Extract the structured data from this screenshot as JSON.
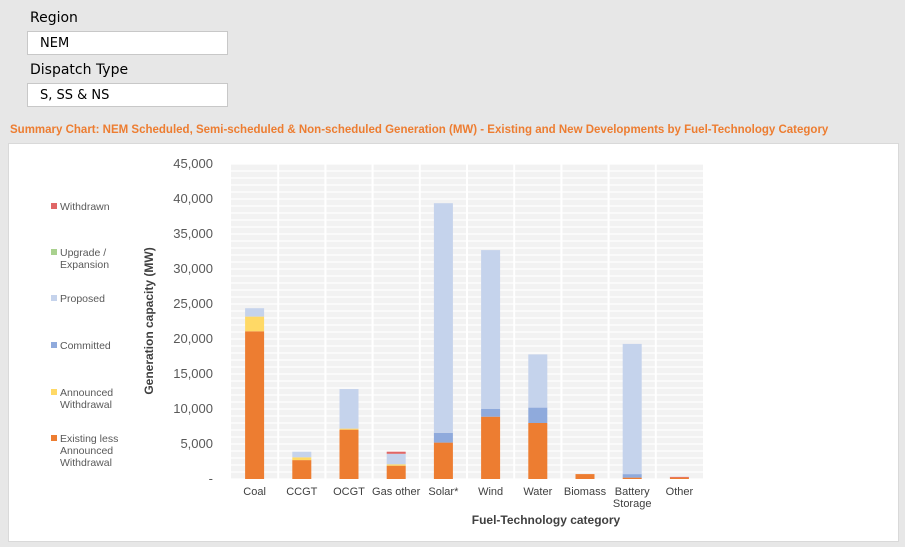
{
  "filters": {
    "region_label": "Region",
    "region_value": "NEM",
    "dispatch_label": "Dispatch Type",
    "dispatch_value": "S, SS & NS"
  },
  "chart_title": "Summary Chart:  NEM Scheduled, Semi-scheduled & Non-scheduled Generation (MW) - Existing and New Developments by Fuel-Technology Category",
  "chart_data": {
    "type": "bar",
    "stacked": true,
    "title": "Summary Chart:  NEM Scheduled, Semi-scheduled & Non-scheduled Generation (MW) - Existing and New Developments by Fuel-Technology Category",
    "xlabel": "Fuel-Technology category",
    "ylabel": "Generation capacity (MW)",
    "ylim": [
      0,
      45000
    ],
    "yticks": [
      "-",
      "5,000",
      "10,000",
      "15,000",
      "20,000",
      "25,000",
      "30,000",
      "35,000",
      "40,000",
      "45,000"
    ],
    "categories": [
      "Coal",
      "CCGT",
      "OCGT",
      "Gas other",
      "Solar*",
      "Wind",
      "Water",
      "Biomass",
      "Battery Storage",
      "Other"
    ],
    "legend_position": "left",
    "series": [
      {
        "name": "Existing less Announced Withdrawal",
        "color": "#ed7d31",
        "values": [
          21100,
          2700,
          7050,
          1900,
          5200,
          8900,
          8000,
          700,
          200,
          200
        ]
      },
      {
        "name": "Announced Withdrawal",
        "color": "#ffd966",
        "values": [
          2100,
          400,
          150,
          200,
          0,
          0,
          0,
          0,
          0,
          0
        ]
      },
      {
        "name": "Committed",
        "color": "#8faadc",
        "values": [
          0,
          0,
          0,
          0,
          1400,
          1100,
          2200,
          0,
          500,
          0
        ]
      },
      {
        "name": "Upgrade / Expansion",
        "color": "#a9d18e",
        "values": [
          0,
          0,
          0,
          0,
          0,
          0,
          0,
          0,
          0,
          0
        ]
      },
      {
        "name": "Proposed",
        "color": "#c5d3ec",
        "values": [
          1200,
          800,
          5650,
          1500,
          32800,
          22700,
          7600,
          0,
          18600,
          0
        ]
      },
      {
        "name": "Withdrawn",
        "color": "#e06666",
        "values": [
          0,
          0,
          0,
          300,
          0,
          0,
          0,
          0,
          0,
          100
        ]
      }
    ]
  }
}
